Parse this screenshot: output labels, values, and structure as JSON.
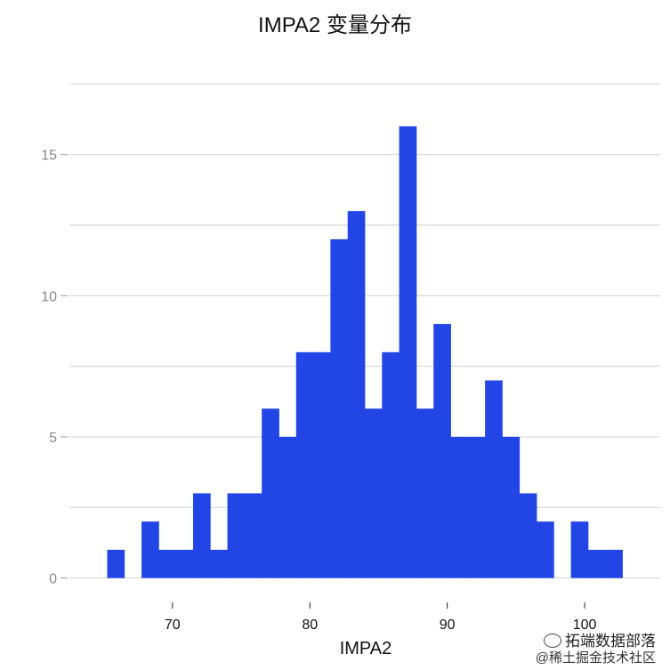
{
  "chart_data": {
    "type": "bar",
    "title": "IMPA2 变量分布",
    "xlabel": "IMPA2",
    "ylabel": "",
    "xlim": [
      62.5,
      105.5
    ],
    "ylim": [
      -0.8,
      18.3
    ],
    "grid": true,
    "xticks": [
      70,
      80,
      90,
      100
    ],
    "yticks": [
      0,
      5,
      10,
      15
    ],
    "bins": [
      {
        "x0": 65.25,
        "x1": 66.5,
        "count": 1
      },
      {
        "x0": 66.5,
        "x1": 67.75,
        "count": 0
      },
      {
        "x0": 67.75,
        "x1": 69.0,
        "count": 2
      },
      {
        "x0": 69.0,
        "x1": 70.25,
        "count": 1
      },
      {
        "x0": 70.25,
        "x1": 71.5,
        "count": 1
      },
      {
        "x0": 71.5,
        "x1": 72.75,
        "count": 3
      },
      {
        "x0": 72.75,
        "x1": 74.0,
        "count": 1
      },
      {
        "x0": 74.0,
        "x1": 75.25,
        "count": 3
      },
      {
        "x0": 75.25,
        "x1": 76.5,
        "count": 3
      },
      {
        "x0": 76.5,
        "x1": 77.75,
        "count": 6
      },
      {
        "x0": 77.75,
        "x1": 79.0,
        "count": 5
      },
      {
        "x0": 79.0,
        "x1": 80.25,
        "count": 8
      },
      {
        "x0": 80.25,
        "x1": 81.5,
        "count": 8
      },
      {
        "x0": 81.5,
        "x1": 82.75,
        "count": 12
      },
      {
        "x0": 82.75,
        "x1": 84.0,
        "count": 13
      },
      {
        "x0": 84.0,
        "x1": 85.25,
        "count": 6
      },
      {
        "x0": 85.25,
        "x1": 86.5,
        "count": 8
      },
      {
        "x0": 86.5,
        "x1": 87.75,
        "count": 16
      },
      {
        "x0": 87.75,
        "x1": 89.0,
        "count": 6
      },
      {
        "x0": 89.0,
        "x1": 90.25,
        "count": 9
      },
      {
        "x0": 90.25,
        "x1": 91.5,
        "count": 5
      },
      {
        "x0": 91.5,
        "x1": 92.75,
        "count": 5
      },
      {
        "x0": 92.75,
        "x1": 94.0,
        "count": 7
      },
      {
        "x0": 94.0,
        "x1": 95.25,
        "count": 5
      },
      {
        "x0": 95.25,
        "x1": 96.5,
        "count": 3
      },
      {
        "x0": 96.5,
        "x1": 97.75,
        "count": 2
      },
      {
        "x0": 97.75,
        "x1": 99.0,
        "count": 0
      },
      {
        "x0": 99.0,
        "x1": 100.25,
        "count": 2
      },
      {
        "x0": 100.25,
        "x1": 101.5,
        "count": 1
      },
      {
        "x0": 101.5,
        "x1": 102.75,
        "count": 1
      }
    ],
    "colors": {
      "bar": "#2245E6",
      "grid": "#d0d0d0",
      "tick_label": "#888888",
      "axis_tick": "#222222"
    }
  },
  "watermark": {
    "line1": "拓端数据部落",
    "line2": "@稀土掘金技术社区"
  }
}
